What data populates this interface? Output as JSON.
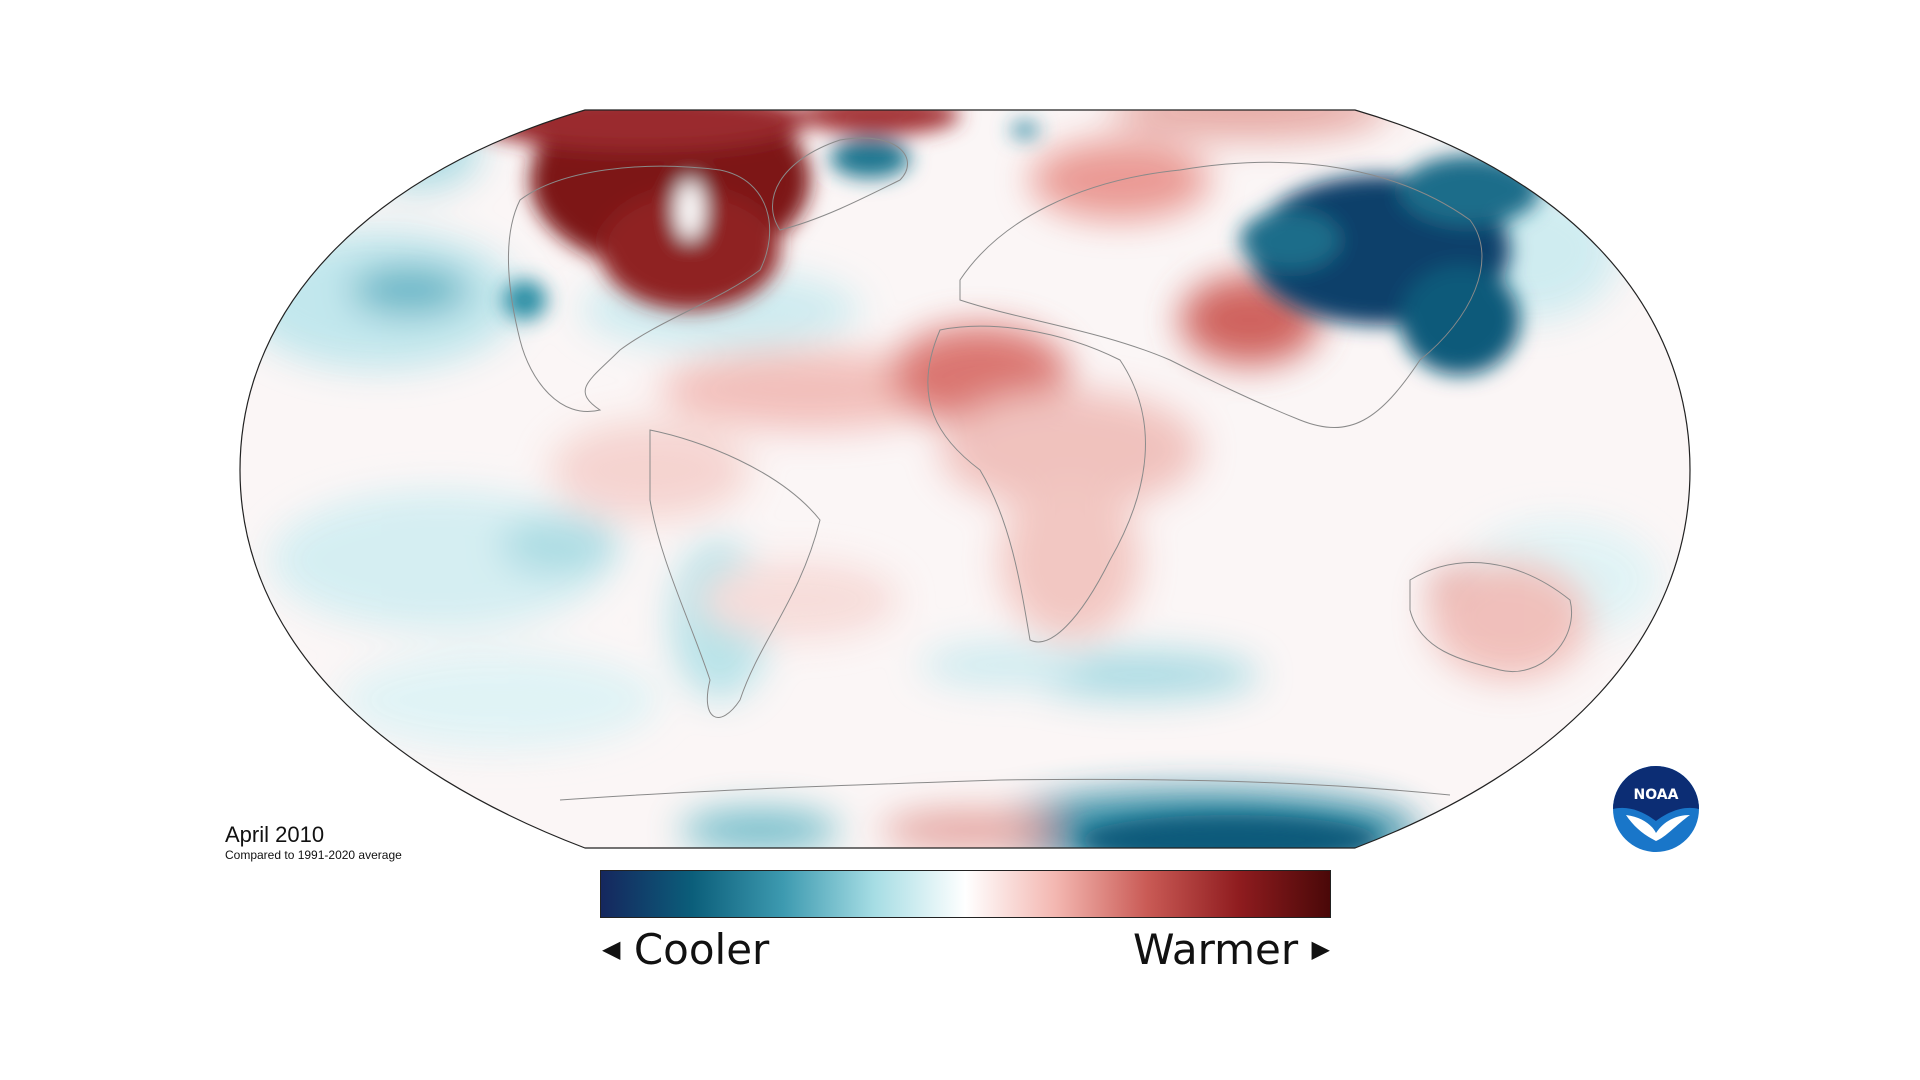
{
  "map": {
    "title": "April 2010",
    "subtitle": "Compared to 1991-2020 average",
    "legend": {
      "low_label": "Cooler",
      "high_label": "Warmer",
      "colors": [
        "#15275e",
        "#0b5e7a",
        "#3d9ab0",
        "#a6dde4",
        "#ffffff",
        "#f3b6b0",
        "#c95a55",
        "#8f1c1f",
        "#4a0808"
      ]
    },
    "logo_text": "NOAA",
    "colors": {
      "warm": "#7d1416",
      "cool": "#0e4d6e",
      "background": "#ffffff"
    }
  }
}
